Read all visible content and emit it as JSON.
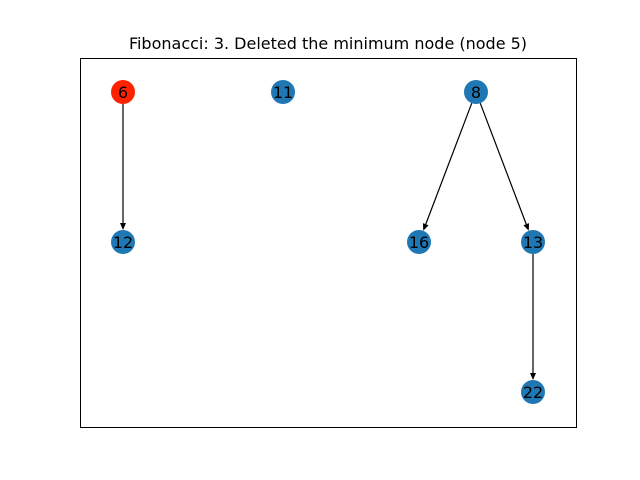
{
  "figure": {
    "title": "Fibonacci: 3. Deleted the minimum node (node 5)"
  },
  "colors": {
    "node_default": "#1f77b4",
    "node_highlight": "#ff2200",
    "edge": "#000000",
    "frame": "#000000"
  },
  "graph": {
    "nodes": [
      {
        "id": "6",
        "label": "6",
        "highlight": true
      },
      {
        "id": "11",
        "label": "11",
        "highlight": false
      },
      {
        "id": "8",
        "label": "8",
        "highlight": false
      },
      {
        "id": "12",
        "label": "12",
        "highlight": false
      },
      {
        "id": "16",
        "label": "16",
        "highlight": false
      },
      {
        "id": "13",
        "label": "13",
        "highlight": false
      },
      {
        "id": "22",
        "label": "22",
        "highlight": false
      }
    ],
    "edges": [
      {
        "from": "6",
        "to": "12"
      },
      {
        "from": "8",
        "to": "16"
      },
      {
        "from": "8",
        "to": "13"
      },
      {
        "from": "13",
        "to": "22"
      }
    ]
  }
}
